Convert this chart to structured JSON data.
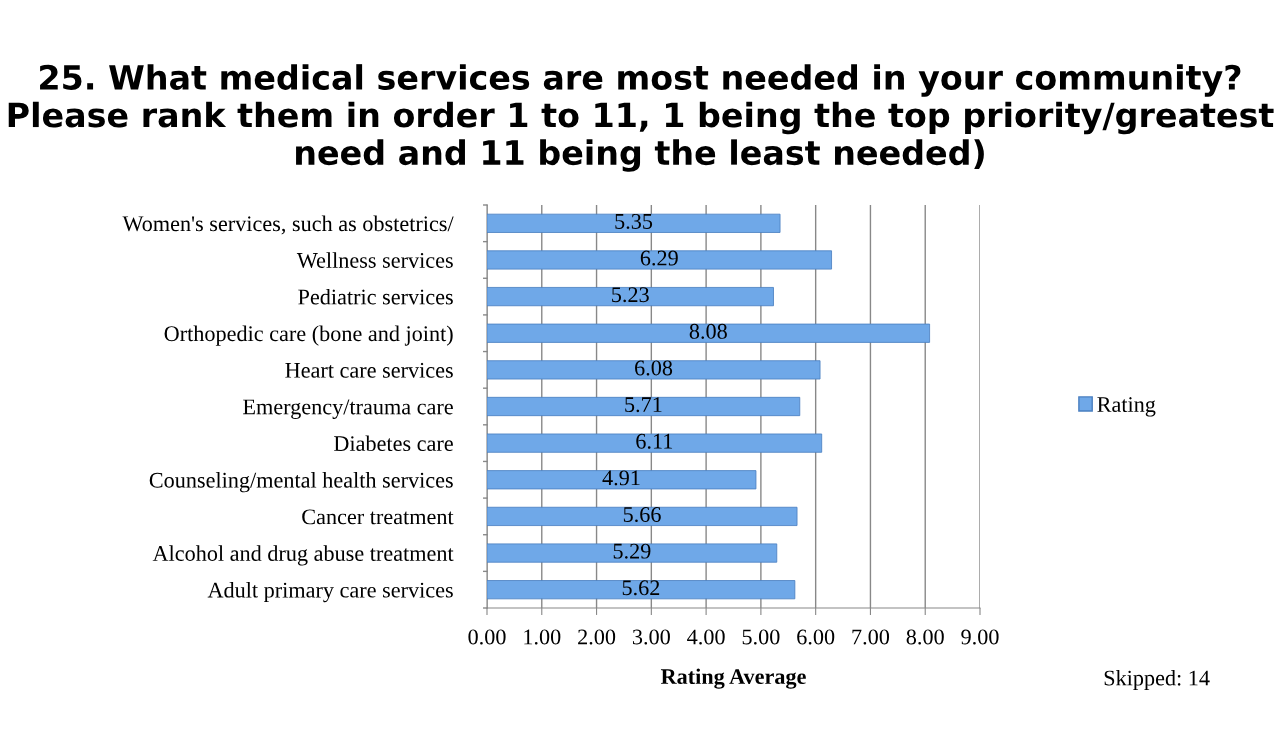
{
  "chart_data": {
    "type": "bar",
    "orientation": "horizontal",
    "title": "25. What medical services are most needed in your community? Please rank them in order 1 to 11, 1 being the top priority/greatest need and 11 being the least needed)",
    "xlabel": "Rating Average",
    "categories": [
      "Women's services, such as obstetrics/",
      "Wellness services",
      "Pediatric services",
      "Orthopedic care (bone and joint)",
      "Heart care services",
      "Emergency/trauma care",
      "Diabetes care",
      "Counseling/mental health services",
      "Cancer treatment",
      "Alcohol and drug abuse treatment",
      "Adult primary care services"
    ],
    "series": [
      {
        "name": "Rating",
        "color": "#6fa8e8",
        "values": [
          5.35,
          6.29,
          5.23,
          8.08,
          6.08,
          5.71,
          6.11,
          4.91,
          5.66,
          5.29,
          5.62
        ]
      }
    ],
    "xlim": [
      0,
      9
    ],
    "xticks": [
      {
        "value": 0,
        "label": "0.00"
      },
      {
        "value": 1,
        "label": "1.00"
      },
      {
        "value": 2,
        "label": "2.00"
      },
      {
        "value": 3,
        "label": "3.00"
      },
      {
        "value": 4,
        "label": "4.00"
      },
      {
        "value": 5,
        "label": "5.00"
      },
      {
        "value": 6,
        "label": "6.00"
      },
      {
        "value": 7,
        "label": "7.00"
      },
      {
        "value": 8,
        "label": "8.00"
      },
      {
        "value": 9,
        "label": "9.00"
      }
    ],
    "grid": "x",
    "legend": "right",
    "data_labels": true,
    "annotations": [
      "Skipped: 14"
    ]
  }
}
